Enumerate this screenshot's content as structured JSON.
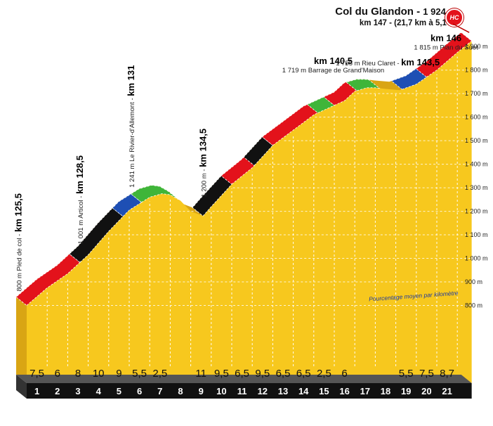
{
  "title": {
    "name": "Col du Glandon",
    "elevation": "1 924 m",
    "subtitle": "km 147 - (21,7 km à 5,1%)",
    "category_badge": "HC"
  },
  "legend_note": "Pourcentage moyen par kilomètre",
  "colors": {
    "fill": "#f7c81e",
    "grade_0_3": "#3fb539",
    "grade_3_6": "#1e4fb4",
    "grade_6_9": "#e3121b",
    "grade_9_plus": "#111111",
    "axis_band": "#111111"
  },
  "chart_data": {
    "type": "area",
    "title": "Col du Glandon - 1 924 m",
    "subtitle": "km 147 - (21,7 km à 5,1%)",
    "xlabel": "",
    "ylabel": "",
    "grid": true,
    "ylim": [
      720,
      1924
    ],
    "y_ticks": [
      {
        "value": 800,
        "label": "800 m"
      },
      {
        "value": 900,
        "label": "900 m"
      },
      {
        "value": 1000,
        "label": "1 000 m"
      },
      {
        "value": 1100,
        "label": "1 100 m"
      },
      {
        "value": 1200,
        "label": "1 200 m"
      },
      {
        "value": 1300,
        "label": "1 300 m"
      },
      {
        "value": 1400,
        "label": "1 400 m"
      },
      {
        "value": 1500,
        "label": "1 500 m"
      },
      {
        "value": 1600,
        "label": "1 600 m"
      },
      {
        "value": 1700,
        "label": "1 700 m"
      },
      {
        "value": 1800,
        "label": "1 800 m"
      },
      {
        "value": 1900,
        "label": "1 900 m"
      }
    ],
    "km_labels": [
      "1",
      "2",
      "3",
      "4",
      "5",
      "6",
      "7",
      "8",
      "9",
      "10",
      "11",
      "12",
      "13",
      "14",
      "15",
      "16",
      "17",
      "18",
      "19",
      "20",
      "21"
    ],
    "grades": [
      "7,5",
      "6",
      "8",
      "10",
      "9",
      "5,5",
      "2,5",
      "",
      "11",
      "9,5",
      "6,5",
      "9,5",
      "6,5",
      "6,5",
      "2,5",
      "6",
      "",
      "",
      "5,5",
      "7,5",
      "8,7"
    ],
    "profile": [
      {
        "km": 0,
        "alt": 800
      },
      {
        "km": 1,
        "alt": 875
      },
      {
        "km": 2,
        "alt": 935
      },
      {
        "km": 3,
        "alt": 1015
      },
      {
        "km": 4,
        "alt": 1115
      },
      {
        "km": 5,
        "alt": 1205
      },
      {
        "km": 6,
        "alt": 1260
      },
      {
        "km": 6.6,
        "alt": 1275
      },
      {
        "km": 7,
        "alt": 1270
      },
      {
        "km": 7.5,
        "alt": 1245
      },
      {
        "km": 8,
        "alt": 1200
      },
      {
        "km": 8.6,
        "alt": 1180
      },
      {
        "km": 9,
        "alt": 1220
      },
      {
        "km": 10,
        "alt": 1315
      },
      {
        "km": 11,
        "alt": 1385
      },
      {
        "km": 12,
        "alt": 1480
      },
      {
        "km": 13,
        "alt": 1545
      },
      {
        "km": 14,
        "alt": 1610
      },
      {
        "km": 15,
        "alt": 1650
      },
      {
        "km": 15.5,
        "alt": 1670
      },
      {
        "km": 16,
        "alt": 1710
      },
      {
        "km": 16.6,
        "alt": 1725
      },
      {
        "km": 17,
        "alt": 1725
      },
      {
        "km": 17.5,
        "alt": 1720
      },
      {
        "km": 18.2,
        "alt": 1715
      },
      {
        "km": 19,
        "alt": 1740
      },
      {
        "km": 20,
        "alt": 1800
      },
      {
        "km": 21,
        "alt": 1875
      },
      {
        "km": 21.7,
        "alt": 1924
      }
    ],
    "segments": [
      {
        "from": 0,
        "to": 2.6,
        "grade": "6-9"
      },
      {
        "from": 2.6,
        "to": 4.7,
        "grade": "9+"
      },
      {
        "from": 4.7,
        "to": 5.6,
        "grade": "3-6"
      },
      {
        "from": 5.6,
        "to": 7.4,
        "grade": "0-3"
      },
      {
        "from": 8.6,
        "to": 10,
        "grade": "9+"
      },
      {
        "from": 10,
        "to": 11.1,
        "grade": "6-9"
      },
      {
        "from": 11.1,
        "to": 12.0,
        "grade": "9+"
      },
      {
        "from": 12.0,
        "to": 14.2,
        "grade": "6-9"
      },
      {
        "from": 14.2,
        "to": 15.0,
        "grade": "0-3"
      },
      {
        "from": 15.0,
        "to": 16.1,
        "grade": "6-9"
      },
      {
        "from": 16.1,
        "to": 17.2,
        "grade": "0-3"
      },
      {
        "from": 18.3,
        "to": 19.5,
        "grade": "3-6"
      },
      {
        "from": 19.5,
        "to": 21.7,
        "grade": "6-9"
      }
    ],
    "annotations": [
      {
        "km": 0,
        "alt": 800,
        "label": "800 m  Pied de col - ",
        "km_label": "km 125,5",
        "vertical": true
      },
      {
        "km": 3,
        "alt": 1001,
        "label": "1 001 m  Articol - ",
        "km_label": "km 128,5",
        "vertical": true
      },
      {
        "km": 5.5,
        "alt": 1241,
        "label": "1 241 m  Le Rivier-d'Allemont - ",
        "km_label": "km 131",
        "vertical": true
      },
      {
        "km": 9,
        "alt": 1200,
        "label": "1 200 m - ",
        "km_label": "km 134,5",
        "vertical": true
      },
      {
        "km": 15,
        "alt": 1719,
        "label": "1 719 m  Barrage de Grand'Maison",
        "km_label": "km 140,5",
        "vertical": false
      },
      {
        "km": 18,
        "alt": 1755,
        "label": "1 755 m  Rieu Claret - ",
        "km_label": "km 143,5",
        "vertical": false,
        "inline": true
      },
      {
        "km": 20.5,
        "alt": 1815,
        "label": "1 815 m  Plan du Suet",
        "km_label": "km 146",
        "vertical": false
      }
    ]
  }
}
